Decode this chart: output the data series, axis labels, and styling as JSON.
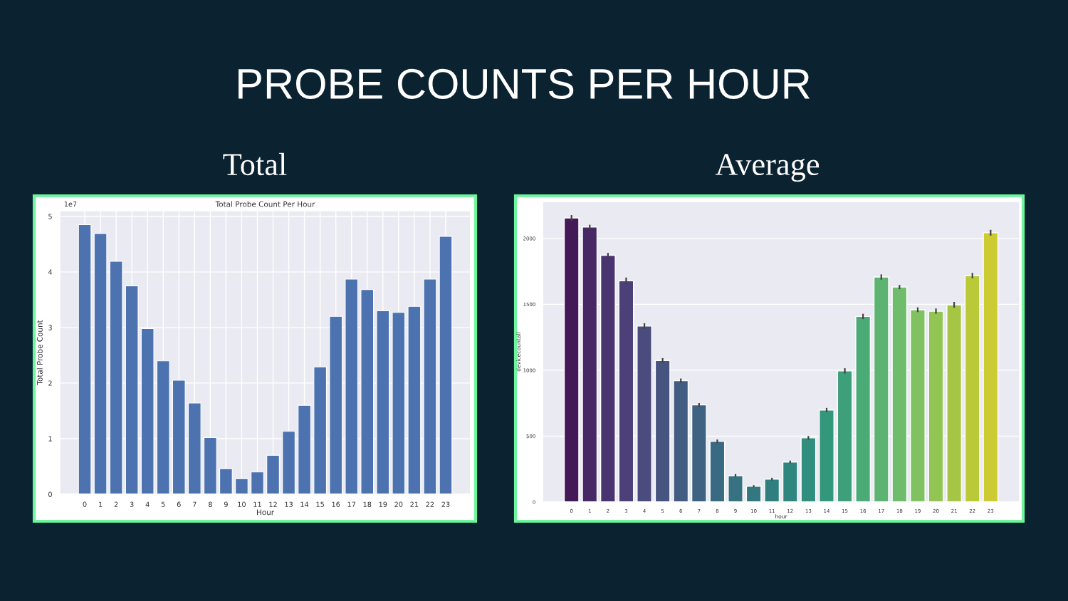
{
  "chart_data": [
    {
      "type": "bar",
      "title": "Total",
      "subtitle": "Total Probe Count Per Hour",
      "xlabel": "Hour",
      "ylabel": "Total Probe Count",
      "annotations": [
        "PROBE COUNTS PER HOUR",
        "1e7"
      ],
      "categories": [
        "0",
        "1",
        "2",
        "3",
        "4",
        "5",
        "6",
        "7",
        "8",
        "9",
        "10",
        "11",
        "12",
        "13",
        "14",
        "15",
        "16",
        "17",
        "18",
        "19",
        "20",
        "21",
        "22",
        "23"
      ],
      "values": [
        4.85,
        4.69,
        4.19,
        3.75,
        2.98,
        2.4,
        2.05,
        1.64,
        1.02,
        0.46,
        0.28,
        0.4,
        0.7,
        1.13,
        1.6,
        2.29,
        3.2,
        3.87,
        3.68,
        3.3,
        3.27,
        3.38,
        3.87,
        4.64
      ],
      "color": "#4c72b0",
      "ylim": [
        0,
        5.1
      ],
      "yticks": [
        0,
        1,
        2,
        3,
        4,
        5
      ],
      "grid": true
    },
    {
      "type": "bar",
      "title": "Average",
      "xlabel": "hour",
      "ylabel": "devicecountall",
      "categories": [
        "0",
        "1",
        "2",
        "3",
        "4",
        "5",
        "6",
        "7",
        "8",
        "9",
        "10",
        "11",
        "12",
        "13",
        "14",
        "15",
        "16",
        "17",
        "18",
        "19",
        "20",
        "21",
        "22",
        "23"
      ],
      "values": [
        2155,
        2086,
        1872,
        1678,
        1335,
        1074,
        921,
        737,
        460,
        200,
        120,
        174,
        304,
        487,
        698,
        995,
        1408,
        1707,
        1631,
        1459,
        1448,
        1496,
        1718,
        2043
      ],
      "errors": [
        22,
        18,
        18,
        25,
        22,
        18,
        16,
        14,
        14,
        12,
        8,
        10,
        10,
        14,
        16,
        20,
        20,
        20,
        16,
        18,
        20,
        22,
        20,
        22
      ],
      "colors": [
        "#431958",
        "#482765",
        "#4a3470",
        "#4b4078",
        "#4a4c7e",
        "#465480",
        "#435c82",
        "#3e6382",
        "#3a6a82",
        "#377182",
        "#337881",
        "#2f7f80",
        "#2f867f",
        "#2f8e7e",
        "#33977c",
        "#3da07a",
        "#4bab76",
        "#5db472",
        "#6fbd6c",
        "#80c161",
        "#92c553",
        "#a5c644",
        "#b9c937",
        "#cccb33"
      ],
      "ylim": [
        0,
        2280
      ],
      "yticks": [
        0,
        500,
        1000,
        1500,
        2000
      ],
      "grid": "y"
    }
  ]
}
